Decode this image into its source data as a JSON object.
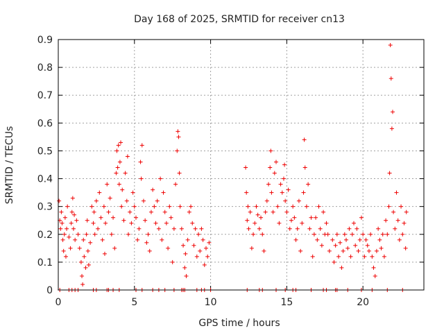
{
  "chart_data": {
    "type": "scatter",
    "title": "Day 168 of 2025, SRMTID for receiver cn13",
    "xlabel": "GPS time / hours",
    "ylabel": "SRMTID / TECUs",
    "xlim": [
      0,
      24
    ],
    "ylim": [
      0,
      0.9
    ],
    "xticks": [
      0,
      5,
      10,
      15,
      20
    ],
    "yticks": [
      0,
      0.1,
      0.2,
      0.3,
      0.4,
      0.5,
      0.6,
      0.7,
      0.8,
      0.9
    ],
    "xtick_labels": [
      "0",
      "5",
      "10",
      "15",
      "20"
    ],
    "ytick_labels": [
      "0",
      "0.1",
      "0.2",
      "0.3",
      "0.4",
      "0.5",
      "0.6",
      "0.7",
      "0.8",
      "0.9"
    ],
    "grid": true,
    "marker": "+",
    "color": "#ee0000",
    "series": [
      {
        "name": "SRMTID",
        "points": [
          [
            0.05,
            0.32
          ],
          [
            0.1,
            0.25
          ],
          [
            0.15,
            0.22
          ],
          [
            0.2,
            0.28
          ],
          [
            0.25,
            0.24
          ],
          [
            0.3,
            0.18
          ],
          [
            0.35,
            0.14
          ],
          [
            0.4,
            0.2
          ],
          [
            0.45,
            0.26
          ],
          [
            0.5,
            0.12
          ],
          [
            0.55,
            0.22
          ],
          [
            0.6,
            0.3
          ],
          [
            0.7,
            0.19
          ],
          [
            0.8,
            0.15
          ],
          [
            0.85,
            0.24
          ],
          [
            0.9,
            0.28
          ],
          [
            0.95,
            0.33
          ],
          [
            1.0,
            0.22
          ],
          [
            1.05,
            0.27
          ],
          [
            1.1,
            0.18
          ],
          [
            1.2,
            0.25
          ],
          [
            1.3,
            0.2
          ],
          [
            1.4,
            0.15
          ],
          [
            1.5,
            0.1
          ],
          [
            1.55,
            0.05
          ],
          [
            1.6,
            0.02
          ],
          [
            1.65,
            0.18
          ],
          [
            1.7,
            0.12
          ],
          [
            1.8,
            0.08
          ],
          [
            1.85,
            0.2
          ],
          [
            1.9,
            0.25
          ],
          [
            1.95,
            0.14
          ],
          [
            2.0,
            0.09
          ],
          [
            2.1,
            0.17
          ],
          [
            2.2,
            0.3
          ],
          [
            2.3,
            0.24
          ],
          [
            2.35,
            0.28
          ],
          [
            2.4,
            0.2
          ],
          [
            2.5,
            0.32
          ],
          [
            2.6,
            0.22
          ],
          [
            2.7,
            0.35
          ],
          [
            2.8,
            0.26
          ],
          [
            2.9,
            0.18
          ],
          [
            3.0,
            0.3
          ],
          [
            3.05,
            0.13
          ],
          [
            3.1,
            0.24
          ],
          [
            3.2,
            0.38
          ],
          [
            3.3,
            0.28
          ],
          [
            3.4,
            0.33
          ],
          [
            3.5,
            0.2
          ],
          [
            3.6,
            0.26
          ],
          [
            3.7,
            0.15
          ],
          [
            3.8,
            0.42
          ],
          [
            3.85,
            0.5
          ],
          [
            3.9,
            0.44
          ],
          [
            3.95,
            0.52
          ],
          [
            4.0,
            0.38
          ],
          [
            4.05,
            0.46
          ],
          [
            4.1,
            0.53
          ],
          [
            4.15,
            0.3
          ],
          [
            4.2,
            0.36
          ],
          [
            4.3,
            0.25
          ],
          [
            4.4,
            0.42
          ],
          [
            4.5,
            0.32
          ],
          [
            4.55,
            0.48
          ],
          [
            4.6,
            0.2
          ],
          [
            4.7,
            0.28
          ],
          [
            4.8,
            0.24
          ],
          [
            4.9,
            0.35
          ],
          [
            5.0,
            0.3
          ],
          [
            5.1,
            0.26
          ],
          [
            5.2,
            0.18
          ],
          [
            5.3,
            0.22
          ],
          [
            5.4,
            0.46
          ],
          [
            5.45,
            0.4
          ],
          [
            5.5,
            0.52
          ],
          [
            5.6,
            0.32
          ],
          [
            5.7,
            0.25
          ],
          [
            5.8,
            0.17
          ],
          [
            5.9,
            0.2
          ],
          [
            6.0,
            0.14
          ],
          [
            6.1,
            0.28
          ],
          [
            6.2,
            0.36
          ],
          [
            6.3,
            0.3
          ],
          [
            6.4,
            0.24
          ],
          [
            6.5,
            0.32
          ],
          [
            6.6,
            0.22
          ],
          [
            6.7,
            0.4
          ],
          [
            6.8,
            0.18
          ],
          [
            6.9,
            0.35
          ],
          [
            7.0,
            0.28
          ],
          [
            7.1,
            0.24
          ],
          [
            7.2,
            0.15
          ],
          [
            7.3,
            0.3
          ],
          [
            7.4,
            0.26
          ],
          [
            7.5,
            0.1
          ],
          [
            7.6,
            0.22
          ],
          [
            7.7,
            0.38
          ],
          [
            7.8,
            0.5
          ],
          [
            7.85,
            0.57
          ],
          [
            7.9,
            0.55
          ],
          [
            7.95,
            0.42
          ],
          [
            8.0,
            0.3
          ],
          [
            8.1,
            0.22
          ],
          [
            8.2,
            0.16
          ],
          [
            8.3,
            0.08
          ],
          [
            8.35,
            0.13
          ],
          [
            8.4,
            0.05
          ],
          [
            8.5,
            0.18
          ],
          [
            8.6,
            0.28
          ],
          [
            8.7,
            0.3
          ],
          [
            8.8,
            0.24
          ],
          [
            8.9,
            0.16
          ],
          [
            9.0,
            0.22
          ],
          [
            9.1,
            0.12
          ],
          [
            9.2,
            0.2
          ],
          [
            9.3,
            0.14
          ],
          [
            9.4,
            0.22
          ],
          [
            9.5,
            0.18
          ],
          [
            9.6,
            0.09
          ],
          [
            9.7,
            0.15
          ],
          [
            9.8,
            0.12
          ],
          [
            9.9,
            0.17
          ],
          [
            12.3,
            0.44
          ],
          [
            12.35,
            0.35
          ],
          [
            12.4,
            0.25
          ],
          [
            12.45,
            0.3
          ],
          [
            12.5,
            0.22
          ],
          [
            12.6,
            0.28
          ],
          [
            12.7,
            0.15
          ],
          [
            12.8,
            0.2
          ],
          [
            12.9,
            0.24
          ],
          [
            13.0,
            0.3
          ],
          [
            13.1,
            0.27
          ],
          [
            13.2,
            0.22
          ],
          [
            13.3,
            0.26
          ],
          [
            13.4,
            0.2
          ],
          [
            13.5,
            0.14
          ],
          [
            13.6,
            0.28
          ],
          [
            13.7,
            0.32
          ],
          [
            13.8,
            0.38
          ],
          [
            13.9,
            0.44
          ],
          [
            13.95,
            0.5
          ],
          [
            14.0,
            0.35
          ],
          [
            14.1,
            0.28
          ],
          [
            14.2,
            0.42
          ],
          [
            14.3,
            0.46
          ],
          [
            14.4,
            0.3
          ],
          [
            14.5,
            0.24
          ],
          [
            14.6,
            0.38
          ],
          [
            14.7,
            0.35
          ],
          [
            14.8,
            0.4
          ],
          [
            14.85,
            0.45
          ],
          [
            14.9,
            0.32
          ],
          [
            15.0,
            0.28
          ],
          [
            15.1,
            0.36
          ],
          [
            15.2,
            0.22
          ],
          [
            15.3,
            0.25
          ],
          [
            15.4,
            0.3
          ],
          [
            15.5,
            0.26
          ],
          [
            15.6,
            0.18
          ],
          [
            15.7,
            0.22
          ],
          [
            15.8,
            0.32
          ],
          [
            15.9,
            0.14
          ],
          [
            16.0,
            0.24
          ],
          [
            16.1,
            0.35
          ],
          [
            16.15,
            0.54
          ],
          [
            16.2,
            0.44
          ],
          [
            16.3,
            0.3
          ],
          [
            16.4,
            0.38
          ],
          [
            16.5,
            0.22
          ],
          [
            16.6,
            0.26
          ],
          [
            16.7,
            0.12
          ],
          [
            16.8,
            0.2
          ],
          [
            16.9,
            0.26
          ],
          [
            17.0,
            0.18
          ],
          [
            17.1,
            0.3
          ],
          [
            17.2,
            0.22
          ],
          [
            17.3,
            0.16
          ],
          [
            17.4,
            0.28
          ],
          [
            17.5,
            0.2
          ],
          [
            17.6,
            0.24
          ],
          [
            17.7,
            0.2
          ],
          [
            17.8,
            0.14
          ],
          [
            18.0,
            0.18
          ],
          [
            18.1,
            0.1
          ],
          [
            18.2,
            0.16
          ],
          [
            18.3,
            0.2
          ],
          [
            18.4,
            0.12
          ],
          [
            18.5,
            0.17
          ],
          [
            18.6,
            0.08
          ],
          [
            18.7,
            0.14
          ],
          [
            18.8,
            0.2
          ],
          [
            18.9,
            0.18
          ],
          [
            19.0,
            0.15
          ],
          [
            19.1,
            0.22
          ],
          [
            19.2,
            0.12
          ],
          [
            19.3,
            0.2
          ],
          [
            19.4,
            0.24
          ],
          [
            19.5,
            0.16
          ],
          [
            19.6,
            0.22
          ],
          [
            19.7,
            0.14
          ],
          [
            19.8,
            0.18
          ],
          [
            19.9,
            0.26
          ],
          [
            20.0,
            0.2
          ],
          [
            20.1,
            0.12
          ],
          [
            20.2,
            0.18
          ],
          [
            20.3,
            0.16
          ],
          [
            20.4,
            0.14
          ],
          [
            20.5,
            0.2
          ],
          [
            20.6,
            0.12
          ],
          [
            20.7,
            0.08
          ],
          [
            20.8,
            0.05
          ],
          [
            20.9,
            0.14
          ],
          [
            21.0,
            0.22
          ],
          [
            21.1,
            0.18
          ],
          [
            21.2,
            0.15
          ],
          [
            21.3,
            0.2
          ],
          [
            21.4,
            0.12
          ],
          [
            21.5,
            0.25
          ],
          [
            21.6,
            0.2
          ],
          [
            21.7,
            0.3
          ],
          [
            21.75,
            0.42
          ],
          [
            21.8,
            0.88
          ],
          [
            21.85,
            0.76
          ],
          [
            21.9,
            0.58
          ],
          [
            21.95,
            0.64
          ],
          [
            22.0,
            0.28
          ],
          [
            22.1,
            0.22
          ],
          [
            22.2,
            0.35
          ],
          [
            22.3,
            0.25
          ],
          [
            22.4,
            0.18
          ],
          [
            22.5,
            0.3
          ],
          [
            22.6,
            0.2
          ],
          [
            22.7,
            0.24
          ],
          [
            22.8,
            0.15
          ],
          [
            22.85,
            0.28
          ]
        ]
      }
    ],
    "baseline_points_x": [
      0.1,
      0.7,
      0.9,
      1.1,
      1.3,
      2.3,
      2.5,
      3.2,
      3.3,
      3.6,
      4.0,
      5.1,
      5.5,
      6.2,
      6.6,
      7.0,
      7.6,
      8.1,
      8.2,
      8.3,
      9.1,
      9.4,
      9.6,
      10.0,
      12.4,
      13.2,
      13.4,
      14.3,
      14.9,
      15.4,
      15.6,
      16.6,
      17.4,
      17.6,
      18.2,
      18.3,
      19.0,
      19.9,
      20.6,
      21.6,
      22.6
    ]
  }
}
